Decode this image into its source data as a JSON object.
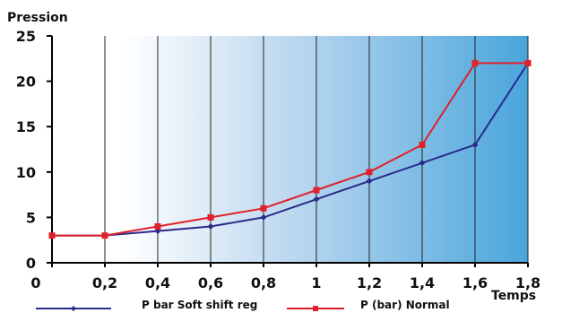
{
  "chart_data": {
    "type": "line",
    "ylabel": "Pression",
    "xlabel": "Temps",
    "xlim": [
      0,
      1.8
    ],
    "ylim": [
      0,
      25
    ],
    "x_ticks": [
      0,
      0.2,
      0.4,
      0.6,
      0.8,
      1,
      1.2,
      1.4,
      1.6,
      1.8
    ],
    "x_tick_labels": [
      "0",
      "0,2",
      "0,4",
      "0,6",
      "0,8",
      "1",
      "1,2",
      "1,4",
      "1,6",
      "1,8"
    ],
    "y_ticks": [
      0,
      5,
      10,
      15,
      20,
      25
    ],
    "y_tick_labels": [
      "0",
      "5",
      "10",
      "15",
      "20",
      "25"
    ],
    "grid": "vertical",
    "background": "gradient white to blue",
    "legend_position": "bottom",
    "series": [
      {
        "name": "P bar Soft shift reg",
        "color": "#2a2a8a",
        "marker": "diamond",
        "x": [
          0,
          0.2,
          0.4,
          0.6,
          0.8,
          1,
          1.2,
          1.4,
          1.6,
          1.8
        ],
        "values": [
          3,
          3,
          3.5,
          4,
          5,
          7,
          9,
          11,
          13,
          22
        ]
      },
      {
        "name": "P (bar) Normal",
        "color": "#e0202a",
        "marker": "square",
        "x": [
          0,
          0.2,
          0.4,
          0.6,
          0.8,
          1,
          1.2,
          1.4,
          1.6,
          1.8
        ],
        "values": [
          3,
          3,
          4,
          5,
          6,
          8,
          10,
          13,
          22,
          22
        ]
      }
    ]
  }
}
